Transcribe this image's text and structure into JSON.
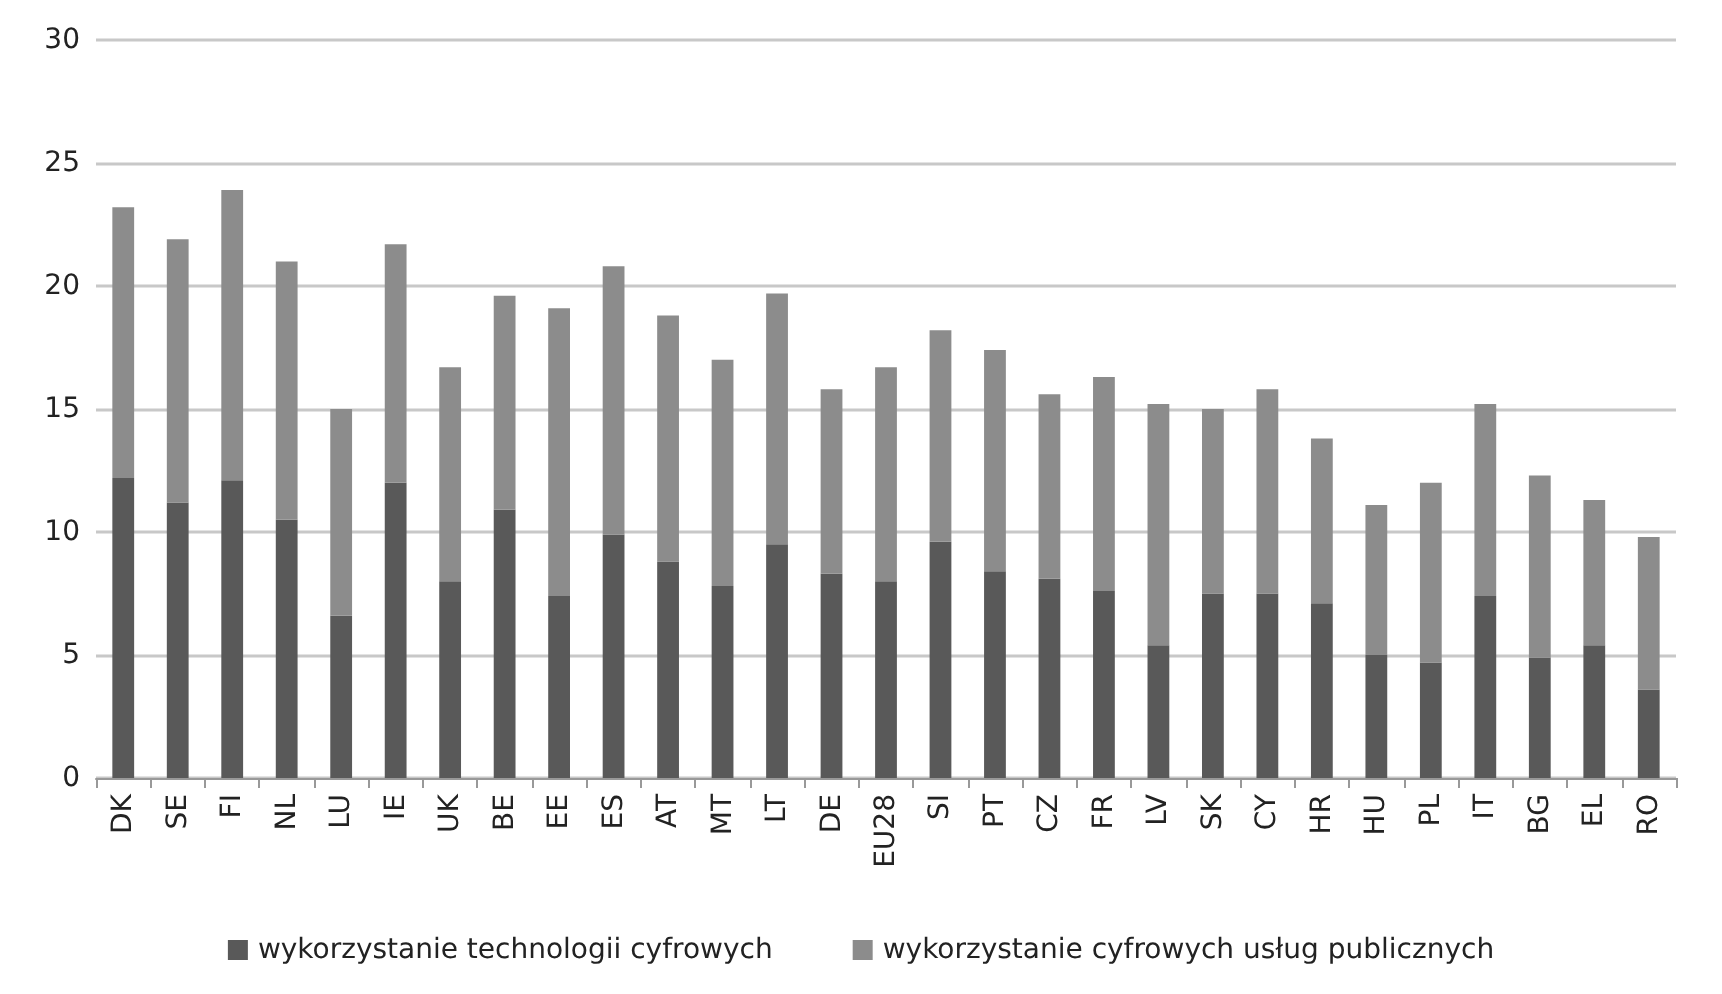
{
  "chart_data": {
    "type": "bar",
    "stacked": true,
    "categories": [
      "DK",
      "SE",
      "FI",
      "NL",
      "LU",
      "IE",
      "UK",
      "BE",
      "EE",
      "ES",
      "AT",
      "MT",
      "LT",
      "DE",
      "EU28",
      "SI",
      "PT",
      "CZ",
      "FR",
      "LV",
      "SK",
      "CY",
      "HR",
      "HU",
      "PL",
      "IT",
      "BG",
      "EL",
      "RO"
    ],
    "series": [
      {
        "name": "wykorzystanie technologii cyfrowych",
        "color": "#595959",
        "values": [
          12.2,
          11.2,
          12.1,
          10.5,
          6.6,
          12.0,
          8.0,
          10.9,
          7.4,
          9.9,
          8.8,
          7.8,
          9.5,
          8.3,
          8.0,
          9.6,
          8.4,
          8.1,
          7.6,
          5.4,
          7.5,
          7.5,
          7.1,
          5.0,
          4.7,
          7.4,
          4.9,
          5.4,
          3.6
        ]
      },
      {
        "name": "wykorzystanie cyfrowych usług publicznych",
        "color": "#8c8c8c",
        "values": [
          11.0,
          10.7,
          11.8,
          10.5,
          8.4,
          9.7,
          8.7,
          8.7,
          11.7,
          10.9,
          10.0,
          9.2,
          10.2,
          7.5,
          8.7,
          8.6,
          9.0,
          7.5,
          8.7,
          9.8,
          7.5,
          8.3,
          6.7,
          6.1,
          7.3,
          7.8,
          7.4,
          5.9,
          6.2
        ]
      }
    ],
    "ylim": [
      0,
      30
    ],
    "yticks": [
      0,
      5,
      10,
      15,
      20,
      25,
      30
    ],
    "grid": "y",
    "legend": "bottom"
  }
}
